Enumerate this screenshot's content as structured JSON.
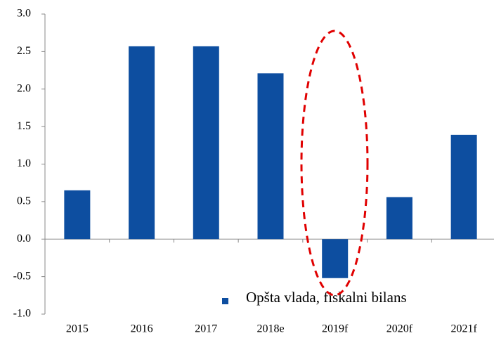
{
  "chart_data": {
    "type": "bar",
    "categories": [
      "2015",
      "2016",
      "2017",
      "2018e",
      "2019f",
      "2020f",
      "2021f"
    ],
    "series": [
      {
        "name": "Opšta vlada, fiskalni bilans",
        "color": "#0d4ea0",
        "values": [
          0.65,
          2.57,
          2.57,
          2.21,
          -0.52,
          0.56,
          1.39
        ]
      }
    ],
    "ylim": [
      -1,
      3
    ],
    "yticks": [
      {
        "value": -1,
        "label": "-1.0"
      },
      {
        "value": -0.5,
        "label": "-0.5"
      },
      {
        "value": 0,
        "label": "0.0"
      },
      {
        "value": 0.5,
        "label": "0.5"
      },
      {
        "value": 1,
        "label": "1.0"
      },
      {
        "value": 1.5,
        "label": "1.5"
      },
      {
        "value": 2,
        "label": "2.0"
      },
      {
        "value": 2.5,
        "label": "2.5"
      },
      {
        "value": 3,
        "label": "3.0"
      }
    ],
    "grid": false,
    "legend": "bottom"
  }
}
